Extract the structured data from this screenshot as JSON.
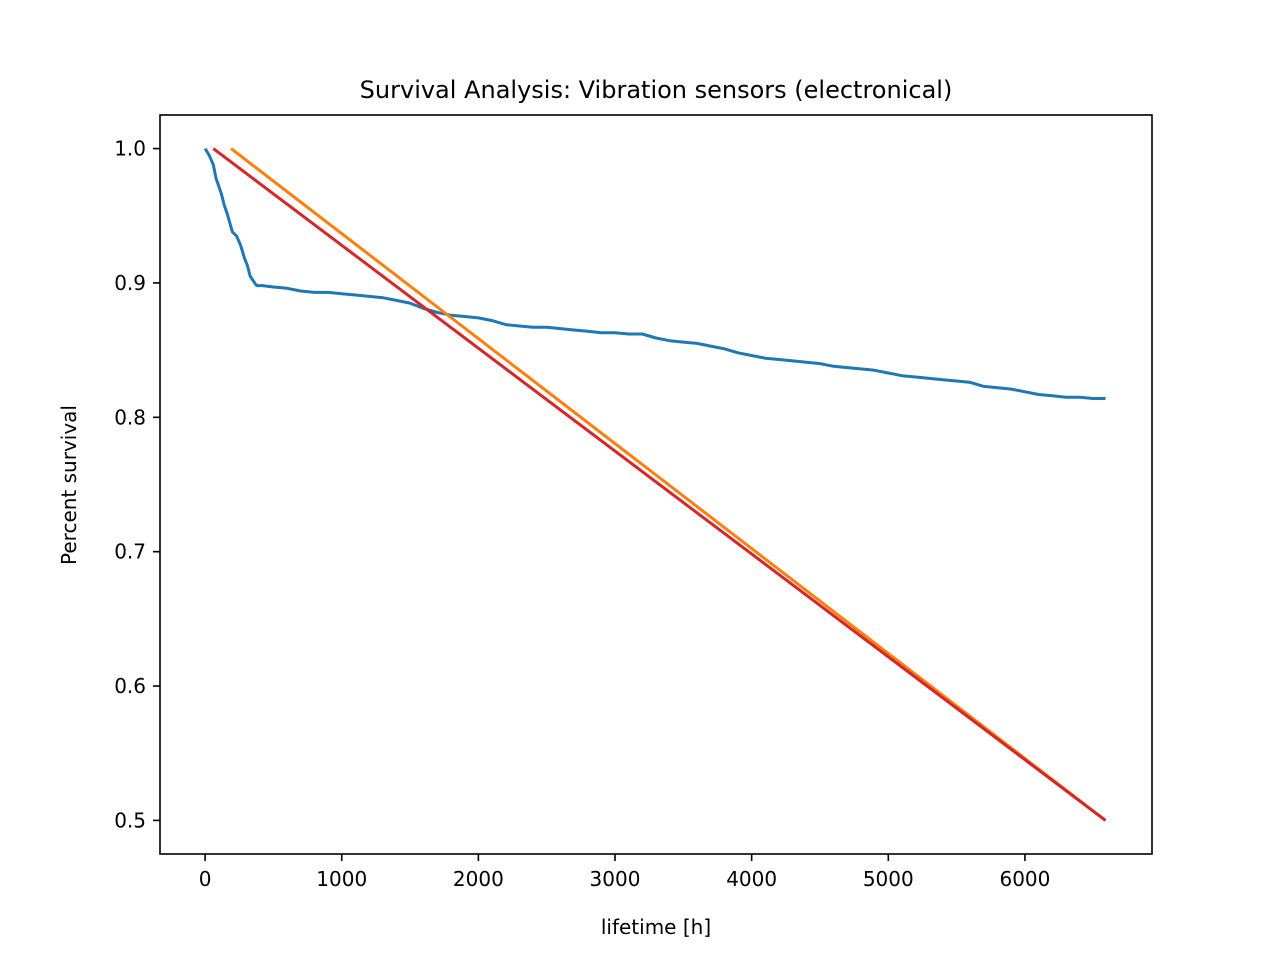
{
  "chart_data": {
    "type": "line",
    "title": "Survival Analysis: Vibration sensors (electronical)",
    "xlabel": "lifetime [h]",
    "ylabel": "Percent survival",
    "xlim": [
      -330,
      6930
    ],
    "ylim": [
      0.475,
      1.025
    ],
    "xticks": [
      0,
      1000,
      2000,
      3000,
      4000,
      5000,
      6000
    ],
    "xtick_labels": [
      "0",
      "1000",
      "2000",
      "3000",
      "4000",
      "5000",
      "6000"
    ],
    "yticks": [
      0.5,
      0.6,
      0.7,
      0.8,
      0.9,
      1.0
    ],
    "ytick_labels": [
      "0.5",
      "0.6",
      "0.7",
      "0.8",
      "0.9",
      "1.0"
    ],
    "grid": false,
    "legend": "none",
    "series": [
      {
        "color": "#1f77b4",
        "x": [
          0,
          30,
          60,
          80,
          100,
          120,
          140,
          160,
          180,
          200,
          230,
          260,
          290,
          310,
          330,
          350,
          370,
          380,
          400,
          420,
          500,
          600,
          700,
          800,
          900,
          1000,
          1100,
          1200,
          1300,
          1400,
          1500,
          1600,
          1700,
          1800,
          1900,
          2000,
          2100,
          2200,
          2300,
          2400,
          2500,
          2600,
          2700,
          2800,
          2900,
          3000,
          3100,
          3200,
          3300,
          3400,
          3500,
          3600,
          3700,
          3800,
          3900,
          4000,
          4100,
          4200,
          4300,
          4400,
          4500,
          4600,
          4700,
          4800,
          4900,
          5000,
          5100,
          5200,
          5300,
          5400,
          5500,
          5600,
          5700,
          5800,
          5900,
          6000,
          6100,
          6200,
          6300,
          6400,
          6500,
          6590
        ],
        "y": [
          1.0,
          0.995,
          0.988,
          0.978,
          0.972,
          0.966,
          0.958,
          0.952,
          0.945,
          0.938,
          0.935,
          0.928,
          0.918,
          0.913,
          0.905,
          0.902,
          0.899,
          0.898,
          0.898,
          0.898,
          0.897,
          0.896,
          0.894,
          0.893,
          0.893,
          0.892,
          0.891,
          0.89,
          0.889,
          0.887,
          0.885,
          0.881,
          0.878,
          0.876,
          0.875,
          0.874,
          0.872,
          0.869,
          0.868,
          0.867,
          0.867,
          0.866,
          0.865,
          0.864,
          0.863,
          0.863,
          0.862,
          0.862,
          0.859,
          0.857,
          0.856,
          0.855,
          0.853,
          0.851,
          0.848,
          0.846,
          0.844,
          0.843,
          0.842,
          0.841,
          0.84,
          0.838,
          0.837,
          0.836,
          0.835,
          0.833,
          0.831,
          0.83,
          0.829,
          0.828,
          0.827,
          0.826,
          0.823,
          0.822,
          0.821,
          0.819,
          0.817,
          0.816,
          0.815,
          0.815,
          0.814,
          0.814
        ]
      },
      {
        "color": "#ff7f0e",
        "x": [
          190,
          6590
        ],
        "y": [
          1.0,
          0.5
        ]
      },
      {
        "color": "#d62728",
        "x": [
          60,
          6590
        ],
        "y": [
          1.0,
          0.5
        ]
      }
    ]
  }
}
